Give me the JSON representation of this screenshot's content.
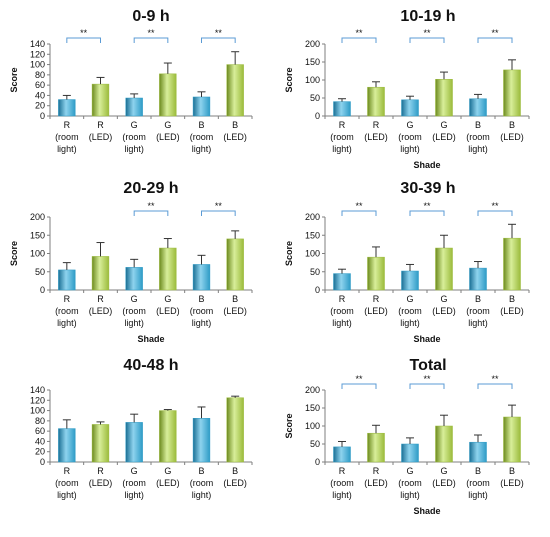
{
  "chart_data": [
    {
      "type": "bar",
      "title": "0-9 h",
      "xlabel": "",
      "ylabel": "Score",
      "ylim": [
        0,
        140
      ],
      "yticks": [
        0,
        20,
        40,
        60,
        80,
        100,
        120,
        140
      ],
      "categories": [
        [
          "R",
          "(room",
          "light)"
        ],
        [
          "R",
          "(LED)"
        ],
        [
          "G",
          "(room",
          "light)"
        ],
        [
          "G",
          "(LED)"
        ],
        [
          "B",
          "(room",
          "light)"
        ],
        [
          "B",
          "(LED)"
        ]
      ],
      "values": [
        32,
        62,
        35,
        82,
        37,
        100
      ],
      "errors": [
        8,
        13,
        8,
        21,
        10,
        25
      ],
      "bar_colors": [
        "#2E9BC6",
        "#9BBB3B",
        "#2E9BC6",
        "#9BBB3B",
        "#2E9BC6",
        "#9BBB3B"
      ],
      "significance": [
        {
          "pair": [
            0,
            1
          ],
          "label": "**"
        },
        {
          "pair": [
            2,
            3
          ],
          "label": "**"
        },
        {
          "pair": [
            4,
            5
          ],
          "label": "**"
        }
      ]
    },
    {
      "type": "bar",
      "title": "10-19 h",
      "xlabel": "Shade",
      "ylabel": "Score",
      "ylim": [
        0,
        200
      ],
      "yticks": [
        0,
        50,
        100,
        150,
        200
      ],
      "categories": [
        [
          "R",
          "(room",
          "light)"
        ],
        [
          "R",
          "(LED)"
        ],
        [
          "G",
          "(room",
          "light)"
        ],
        [
          "G",
          "(LED)"
        ],
        [
          "B",
          "(room",
          "light)"
        ],
        [
          "B",
          "(LED)"
        ]
      ],
      "values": [
        40,
        80,
        45,
        102,
        48,
        128
      ],
      "errors": [
        8,
        15,
        10,
        20,
        12,
        28
      ],
      "bar_colors": [
        "#2E9BC6",
        "#9BBB3B",
        "#2E9BC6",
        "#9BBB3B",
        "#2E9BC6",
        "#9BBB3B"
      ],
      "significance": [
        {
          "pair": [
            0,
            1
          ],
          "label": "**"
        },
        {
          "pair": [
            2,
            3
          ],
          "label": "**"
        },
        {
          "pair": [
            4,
            5
          ],
          "label": "**"
        }
      ]
    },
    {
      "type": "bar",
      "title": "20-29 h",
      "xlabel": "Shade",
      "ylabel": "Score",
      "ylim": [
        0,
        200
      ],
      "yticks": [
        0,
        50,
        100,
        150,
        200
      ],
      "categories": [
        [
          "R",
          "(room",
          "light)"
        ],
        [
          "R",
          "(LED)"
        ],
        [
          "G",
          "(room",
          "light)"
        ],
        [
          "G",
          "(LED)"
        ],
        [
          "B",
          "(room",
          "light)"
        ],
        [
          "B",
          "(LED)"
        ]
      ],
      "values": [
        55,
        92,
        62,
        115,
        70,
        140
      ],
      "errors": [
        20,
        38,
        22,
        26,
        25,
        22
      ],
      "bar_colors": [
        "#2E9BC6",
        "#9BBB3B",
        "#2E9BC6",
        "#9BBB3B",
        "#2E9BC6",
        "#9BBB3B"
      ],
      "significance": [
        {
          "pair": [
            2,
            3
          ],
          "label": "**"
        },
        {
          "pair": [
            4,
            5
          ],
          "label": "**"
        }
      ]
    },
    {
      "type": "bar",
      "title": "30-39 h",
      "xlabel": "Shade",
      "ylabel": "Score",
      "ylim": [
        0,
        200
      ],
      "yticks": [
        0,
        50,
        100,
        150,
        200
      ],
      "categories": [
        [
          "R",
          "(room",
          "light)"
        ],
        [
          "R",
          "(LED)"
        ],
        [
          "G",
          "(room",
          "light)"
        ],
        [
          "G",
          "(LED)"
        ],
        [
          "B",
          "(room",
          "light)"
        ],
        [
          "B",
          "(LED)"
        ]
      ],
      "values": [
        45,
        90,
        52,
        115,
        60,
        142
      ],
      "errors": [
        12,
        28,
        18,
        35,
        18,
        38
      ],
      "bar_colors": [
        "#2E9BC6",
        "#9BBB3B",
        "#2E9BC6",
        "#9BBB3B",
        "#2E9BC6",
        "#9BBB3B"
      ],
      "significance": [
        {
          "pair": [
            0,
            1
          ],
          "label": "**"
        },
        {
          "pair": [
            2,
            3
          ],
          "label": "**"
        },
        {
          "pair": [
            4,
            5
          ],
          "label": "**"
        }
      ]
    },
    {
      "type": "bar",
      "title": "40-48 h",
      "xlabel": "",
      "ylabel": "",
      "ylim": [
        0,
        140
      ],
      "yticks": [
        0,
        20,
        40,
        60,
        80,
        100,
        120,
        140
      ],
      "categories": [
        [
          "R",
          "(room",
          "light)"
        ],
        [
          "R",
          "(LED)"
        ],
        [
          "G",
          "(room",
          "light)"
        ],
        [
          "G",
          "(LED)"
        ],
        [
          "B",
          "(room",
          "light)"
        ],
        [
          "B",
          "(LED)"
        ]
      ],
      "values": [
        65,
        73,
        77,
        100,
        85,
        125
      ],
      "errors": [
        17,
        5,
        16,
        2,
        22,
        3
      ],
      "bar_colors": [
        "#2E9BC6",
        "#9BBB3B",
        "#2E9BC6",
        "#9BBB3B",
        "#2E9BC6",
        "#9BBB3B"
      ],
      "significance": []
    },
    {
      "type": "bar",
      "title": "Total",
      "xlabel": "Shade",
      "ylabel": "Score",
      "ylim": [
        0,
        200
      ],
      "yticks": [
        0,
        50,
        100,
        150,
        200
      ],
      "categories": [
        [
          "R",
          "(room",
          "light)"
        ],
        [
          "R",
          "(LED)"
        ],
        [
          "G",
          "(room",
          "light)"
        ],
        [
          "G",
          "(LED)"
        ],
        [
          "B",
          "(room",
          "light)"
        ],
        [
          "B",
          "(LED)"
        ]
      ],
      "values": [
        42,
        80,
        50,
        100,
        55,
        125
      ],
      "errors": [
        15,
        22,
        17,
        30,
        20,
        33
      ],
      "bar_colors": [
        "#2E9BC6",
        "#9BBB3B",
        "#2E9BC6",
        "#9BBB3B",
        "#2E9BC6",
        "#9BBB3B"
      ],
      "significance": [
        {
          "pair": [
            0,
            1
          ],
          "label": "**"
        },
        {
          "pair": [
            2,
            3
          ],
          "label": "**"
        },
        {
          "pair": [
            4,
            5
          ],
          "label": "**"
        }
      ]
    }
  ],
  "colors": {
    "axis": "#7f7f7f",
    "bracket": "#5B9BD5",
    "error_bar": "#333333"
  }
}
